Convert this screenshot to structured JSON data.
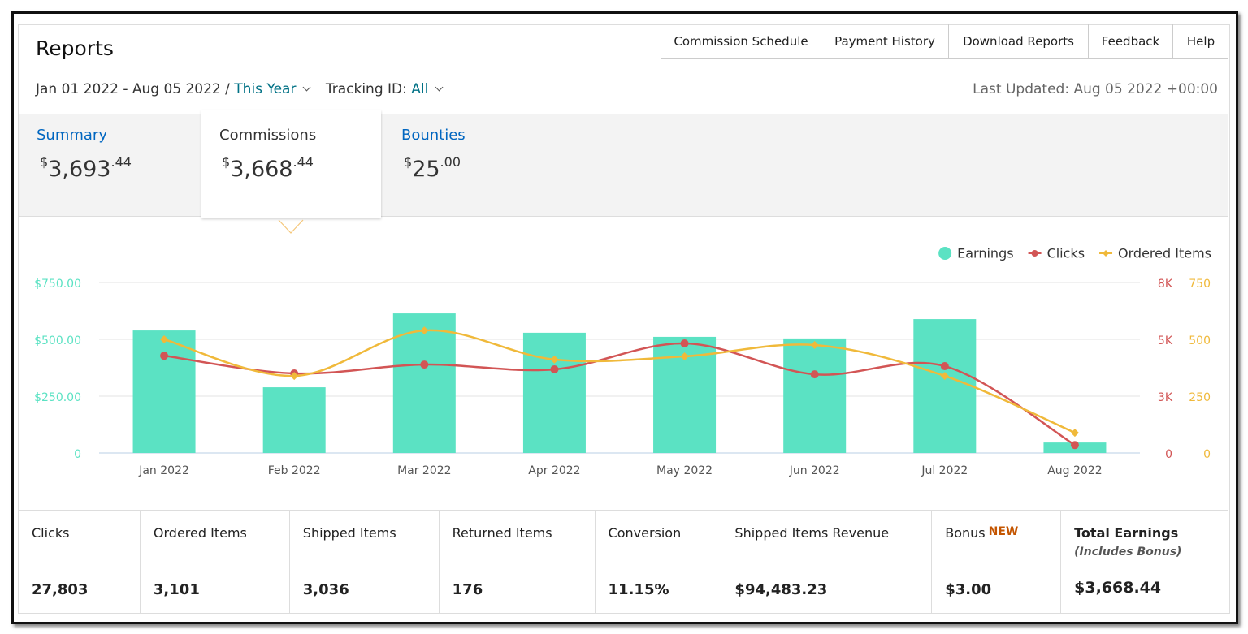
{
  "header": {
    "title": "Reports",
    "tabs": [
      "Commission Schedule",
      "Payment History",
      "Download Reports",
      "Feedback",
      "Help"
    ]
  },
  "filters": {
    "date_range": "Jan 01 2022 - Aug 05 2022 /",
    "period": "This Year",
    "tracking_label": "Tracking ID:",
    "tracking_value": "All",
    "last_updated": "Last Updated: Aug 05 2022 +00:00"
  },
  "summary_tabs": [
    {
      "label": "Summary",
      "currency": "$",
      "whole": "3,693",
      "fraction": ".44"
    },
    {
      "label": "Commissions",
      "currency": "$",
      "whole": "3,668",
      "fraction": ".44"
    },
    {
      "label": "Bounties",
      "currency": "$",
      "whole": "25",
      "fraction": ".00"
    }
  ],
  "chart_data": {
    "type": "combo",
    "categories": [
      "Jan 2022",
      "Feb 2022",
      "Mar 2022",
      "Apr 2022",
      "May 2022",
      "Jun 2022",
      "Jul 2022",
      "Aug 2022"
    ],
    "series": [
      {
        "name": "Earnings",
        "type": "bar",
        "marker": "circle",
        "color": "#5be2c3",
        "values": [
          539,
          289,
          614,
          529,
          511,
          504,
          589,
          46
        ]
      },
      {
        "name": "Clicks",
        "type": "line",
        "marker": "circle",
        "color": "#d25555",
        "axis": "y2",
        "values": [
          4280,
          3500,
          3890,
          3680,
          4820,
          3460,
          3820,
          350
        ]
      },
      {
        "name": "Ordered Items",
        "type": "line",
        "marker": "diamond",
        "color": "#f0b93a",
        "axis": "y3",
        "values": [
          500,
          339,
          539,
          411,
          425,
          475,
          339,
          89
        ]
      }
    ],
    "ylim": [
      0,
      750
    ],
    "yticks": [
      0,
      {
        "value": 250,
        "label": "$250.00"
      },
      {
        "value": 500,
        "label": "$500.00"
      },
      {
        "value": 750,
        "label": "$750.00"
      }
    ],
    "y2lim": [
      0,
      7500
    ],
    "y2ticks": [
      0,
      {
        "value": 2500,
        "label": "3K"
      },
      {
        "value": 5000,
        "label": "5K"
      },
      {
        "value": 7500,
        "label": "8K"
      }
    ],
    "y3lim": [
      0,
      750
    ],
    "y3ticks": [
      0,
      250,
      500,
      750
    ],
    "grid": true,
    "legend": "top-right"
  },
  "stats": [
    {
      "label": "Clicks",
      "value": "27,803"
    },
    {
      "label": "Ordered Items",
      "value": "3,101"
    },
    {
      "label": "Shipped Items",
      "value": "3,036"
    },
    {
      "label": "Returned Items",
      "value": "176"
    },
    {
      "label": "Conversion",
      "value": "11.15%"
    },
    {
      "label": "Shipped Items Revenue",
      "value": "$94,483.23"
    },
    {
      "label": "Bonus",
      "badge": "NEW",
      "value": "$3.00"
    },
    {
      "label": "Total Earnings",
      "note": "(Includes Bonus)",
      "value": "$3,668.44"
    }
  ]
}
